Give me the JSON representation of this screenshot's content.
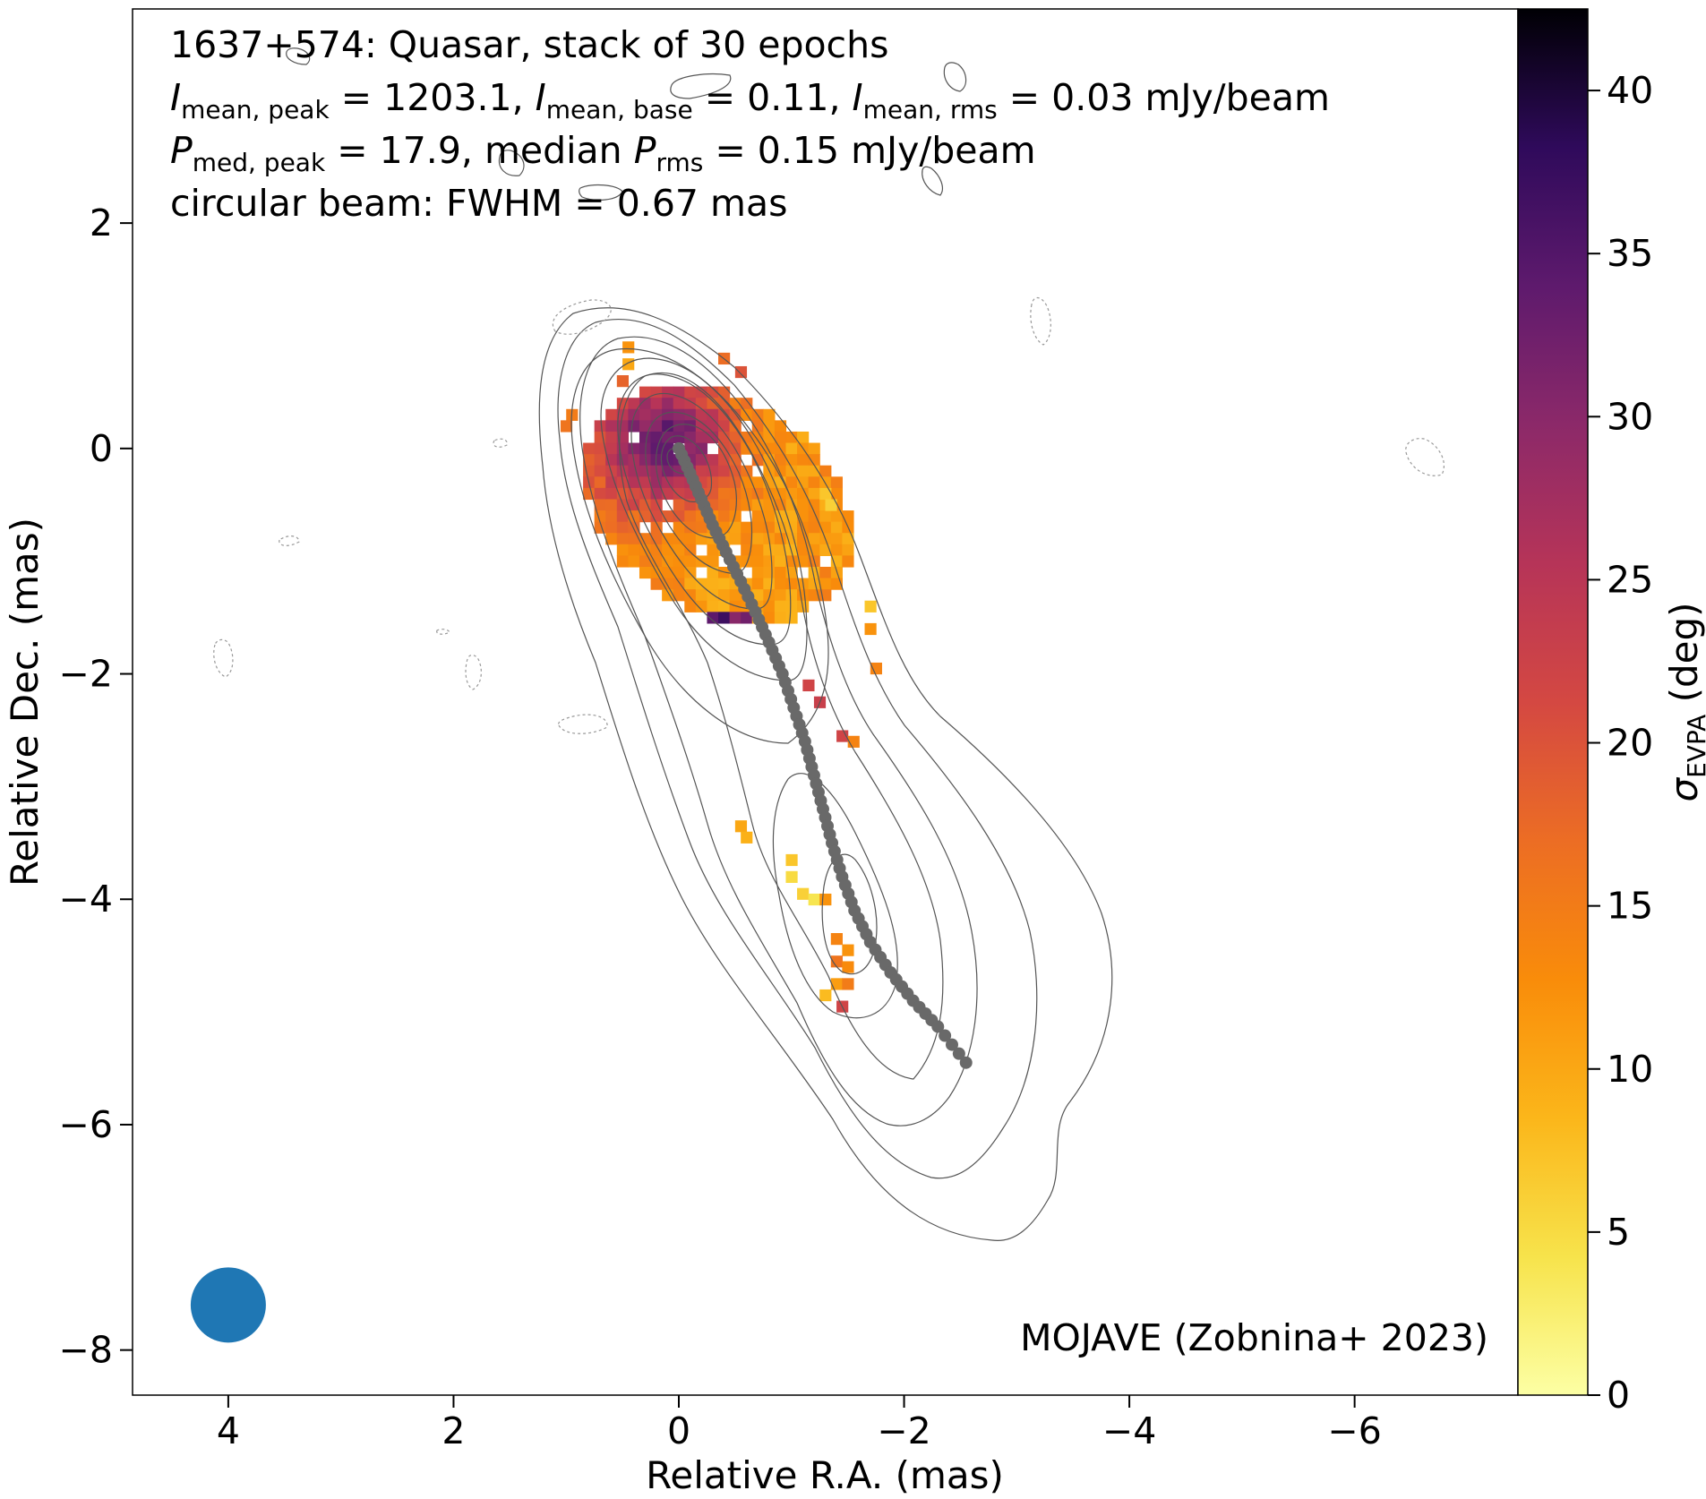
{
  "chart_data": {
    "type": "heatmap",
    "title_lines": [
      "1637+574: Quasar, stack of 30 epochs",
      "circular beam: FWHM = 0.67 mas"
    ],
    "intensity_line": {
      "I_label": "I",
      "peak_sub": "mean, peak",
      "peak_value": "= 1203.1,",
      "base_sub": "mean, base",
      "base_value": "= 0.11,",
      "rms_sub": "mean, rms",
      "rms_value": "= 0.03 mJy/beam"
    },
    "polarization_line": {
      "P_label": "P",
      "peak_sub": "med, peak",
      "peak_value": "= 17.9, median",
      "rms_sub": "rms",
      "rms_value": "= 0.15 mJy/beam"
    },
    "xlabel": "Relative R.A. (mas)",
    "ylabel": "Relative Dec. (mas)",
    "colorbar_label_symbol": "σ",
    "colorbar_label_sub": "EVPA",
    "colorbar_label_unit": "(deg)",
    "credit": "MOJAVE (Zobnina+ 2023)",
    "xlim": [
      4.85,
      -7.45
    ],
    "ylim": [
      -8.4,
      3.9
    ],
    "x_ticks": [
      4,
      2,
      0,
      -2,
      -4,
      -6
    ],
    "x_tick_labels": [
      "4",
      "2",
      "0",
      "−2",
      "−4",
      "−6"
    ],
    "y_ticks": [
      2,
      0,
      -2,
      -4,
      -6,
      -8
    ],
    "y_tick_labels": [
      "2",
      "0",
      "−2",
      "−4",
      "−6",
      "−8"
    ],
    "colorbar_range": [
      0,
      42.5
    ],
    "colorbar_ticks": [
      0,
      5,
      10,
      15,
      20,
      25,
      30,
      35,
      40
    ],
    "colorbar_tick_labels": [
      "0",
      "5",
      "10",
      "15",
      "20",
      "25",
      "30",
      "35",
      "40"
    ],
    "colormap": "inferno_r",
    "beam": {
      "x": 4.0,
      "y": -7.6,
      "fwhm": 0.67,
      "color": "#1f77b4"
    },
    "contour_color": "#555555",
    "ridgeline": {
      "color": "#696969",
      "points": [
        [
          0.0,
          0.0
        ],
        [
          -0.1,
          -0.22
        ],
        [
          -0.2,
          -0.45
        ],
        [
          -0.3,
          -0.68
        ],
        [
          -0.42,
          -0.92
        ],
        [
          -0.55,
          -1.18
        ],
        [
          -0.68,
          -1.45
        ],
        [
          -0.8,
          -1.72
        ],
        [
          -0.92,
          -2.0
        ],
        [
          -1.02,
          -2.3
        ],
        [
          -1.12,
          -2.6
        ],
        [
          -1.2,
          -2.9
        ],
        [
          -1.28,
          -3.2
        ],
        [
          -1.36,
          -3.5
        ],
        [
          -1.45,
          -3.8
        ],
        [
          -1.56,
          -4.1
        ],
        [
          -1.7,
          -4.38
        ],
        [
          -1.88,
          -4.65
        ],
        [
          -2.08,
          -4.9
        ],
        [
          -2.3,
          -5.13
        ],
        [
          -2.55,
          -5.45
        ]
      ]
    }
  }
}
